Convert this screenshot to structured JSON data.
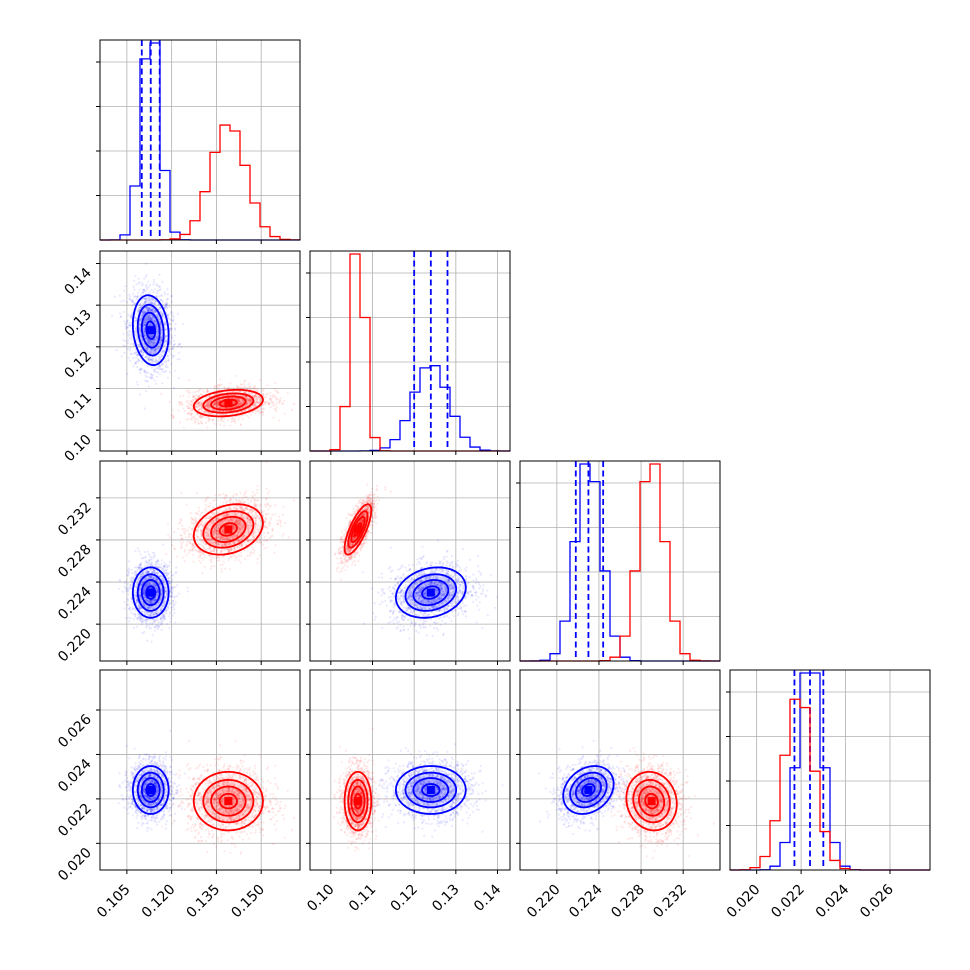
{
  "chart_data": {
    "type": "corner",
    "grid": true,
    "n_params": 4,
    "colors": {
      "blue": "#0000ff",
      "red": "#ff0000"
    },
    "params": [
      {
        "range": [
          0.096,
          0.163
        ],
        "ticks": [
          0.105,
          0.12,
          0.135,
          0.15
        ],
        "tick_labels": [
          "0.105",
          "0.120",
          "0.135",
          "0.150"
        ]
      },
      {
        "range": [
          0.095,
          0.143
        ],
        "ticks": [
          0.1,
          0.11,
          0.12,
          0.13,
          0.14
        ],
        "tick_labels": [
          "0.10",
          "0.11",
          "0.12",
          "0.13",
          "0.14"
        ]
      },
      {
        "range": [
          0.2165,
          0.2355
        ],
        "ticks": [
          0.22,
          0.224,
          0.228,
          0.232
        ],
        "tick_labels": [
          "0.220",
          "0.224",
          "0.228",
          "0.232"
        ]
      },
      {
        "range": [
          0.0188,
          0.0278
        ],
        "ticks": [
          0.02,
          0.022,
          0.024,
          0.026
        ],
        "tick_labels": [
          "0.020",
          "0.022",
          "0.024",
          "0.026"
        ]
      }
    ],
    "series": [
      {
        "color": "#0000ff",
        "means": [
          0.113,
          0.124,
          0.223,
          0.0224
        ],
        "stds": [
          0.003,
          0.0042,
          0.0012,
          0.00054
        ],
        "quantile_lines": [
          [
            0.11,
            0.113,
            0.116
          ],
          [
            0.12,
            0.124,
            0.128
          ],
          [
            0.2218,
            0.223,
            0.2244
          ],
          [
            0.0217,
            0.0224,
            0.023
          ]
        ],
        "correlations": [
          [
            0,
            1,
            -0.15
          ],
          [
            0,
            2,
            0.0
          ],
          [
            1,
            2,
            0.2
          ],
          [
            0,
            3,
            0.0
          ],
          [
            1,
            3,
            0.0
          ],
          [
            2,
            3,
            0.25
          ]
        ]
      },
      {
        "color": "#ff0000",
        "means": [
          0.139,
          0.1065,
          0.229,
          0.0219
        ],
        "stds": [
          0.0058,
          0.0016,
          0.0012,
          0.00066
        ],
        "correlations": [
          [
            0,
            1,
            0.25
          ],
          [
            0,
            2,
            0.25
          ],
          [
            1,
            2,
            0.75
          ],
          [
            0,
            3,
            0.0
          ],
          [
            1,
            3,
            0.0
          ],
          [
            2,
            3,
            -0.1
          ]
        ]
      }
    ]
  }
}
